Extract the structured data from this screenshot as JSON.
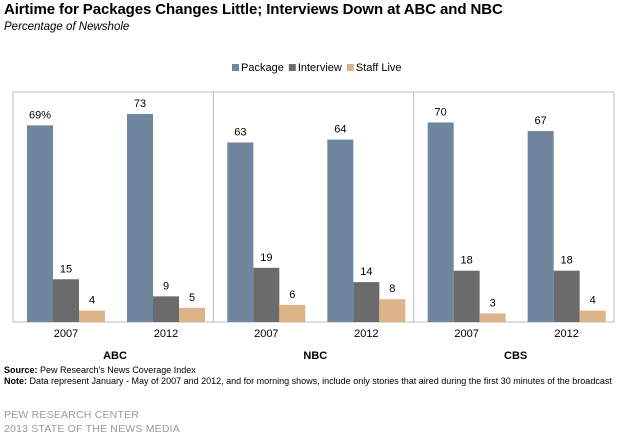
{
  "chart_data": {
    "type": "bar",
    "title": "Airtime for Packages Changes Little; Interviews Down at ABC and NBC",
    "subtitle": "Percentage of Newshole",
    "groups": [
      {
        "name": "ABC",
        "years": [
          {
            "year": "2007",
            "values": [
              69,
              15,
              4
            ],
            "top_label": "69%"
          },
          {
            "year": "2012",
            "values": [
              73,
              9,
              5
            ],
            "top_label": "73"
          }
        ]
      },
      {
        "name": "NBC",
        "years": [
          {
            "year": "2007",
            "values": [
              63,
              19,
              6
            ],
            "top_label": "63"
          },
          {
            "year": "2012",
            "values": [
              64,
              14,
              8
            ],
            "top_label": "64"
          }
        ]
      },
      {
        "name": "CBS",
        "years": [
          {
            "year": "2007",
            "values": [
              70,
              18,
              3
            ],
            "top_label": "70"
          },
          {
            "year": "2012",
            "values": [
              67,
              18,
              4
            ],
            "top_label": "67"
          }
        ]
      }
    ],
    "series": [
      {
        "name": "Package",
        "color": "#6f869e"
      },
      {
        "name": "Interview",
        "color": "#6b6b6b"
      },
      {
        "name": "Staff Live",
        "color": "#ddb48a"
      }
    ],
    "ylim": [
      0,
      80
    ],
    "legend": "top-center"
  },
  "footer": {
    "source_label": "Source:",
    "source_text": " Pew Research's News Coverage Index",
    "note_label": "Note:",
    "note_text": " Data represent January - May of 2007 and 2012, and for morning shows, include only stories that aired during the first 30 minutes of the broadcast",
    "org_line1": "PEW RESEARCH CENTER",
    "org_line2": "2013 STATE OF THE NEWS MEDIA"
  }
}
